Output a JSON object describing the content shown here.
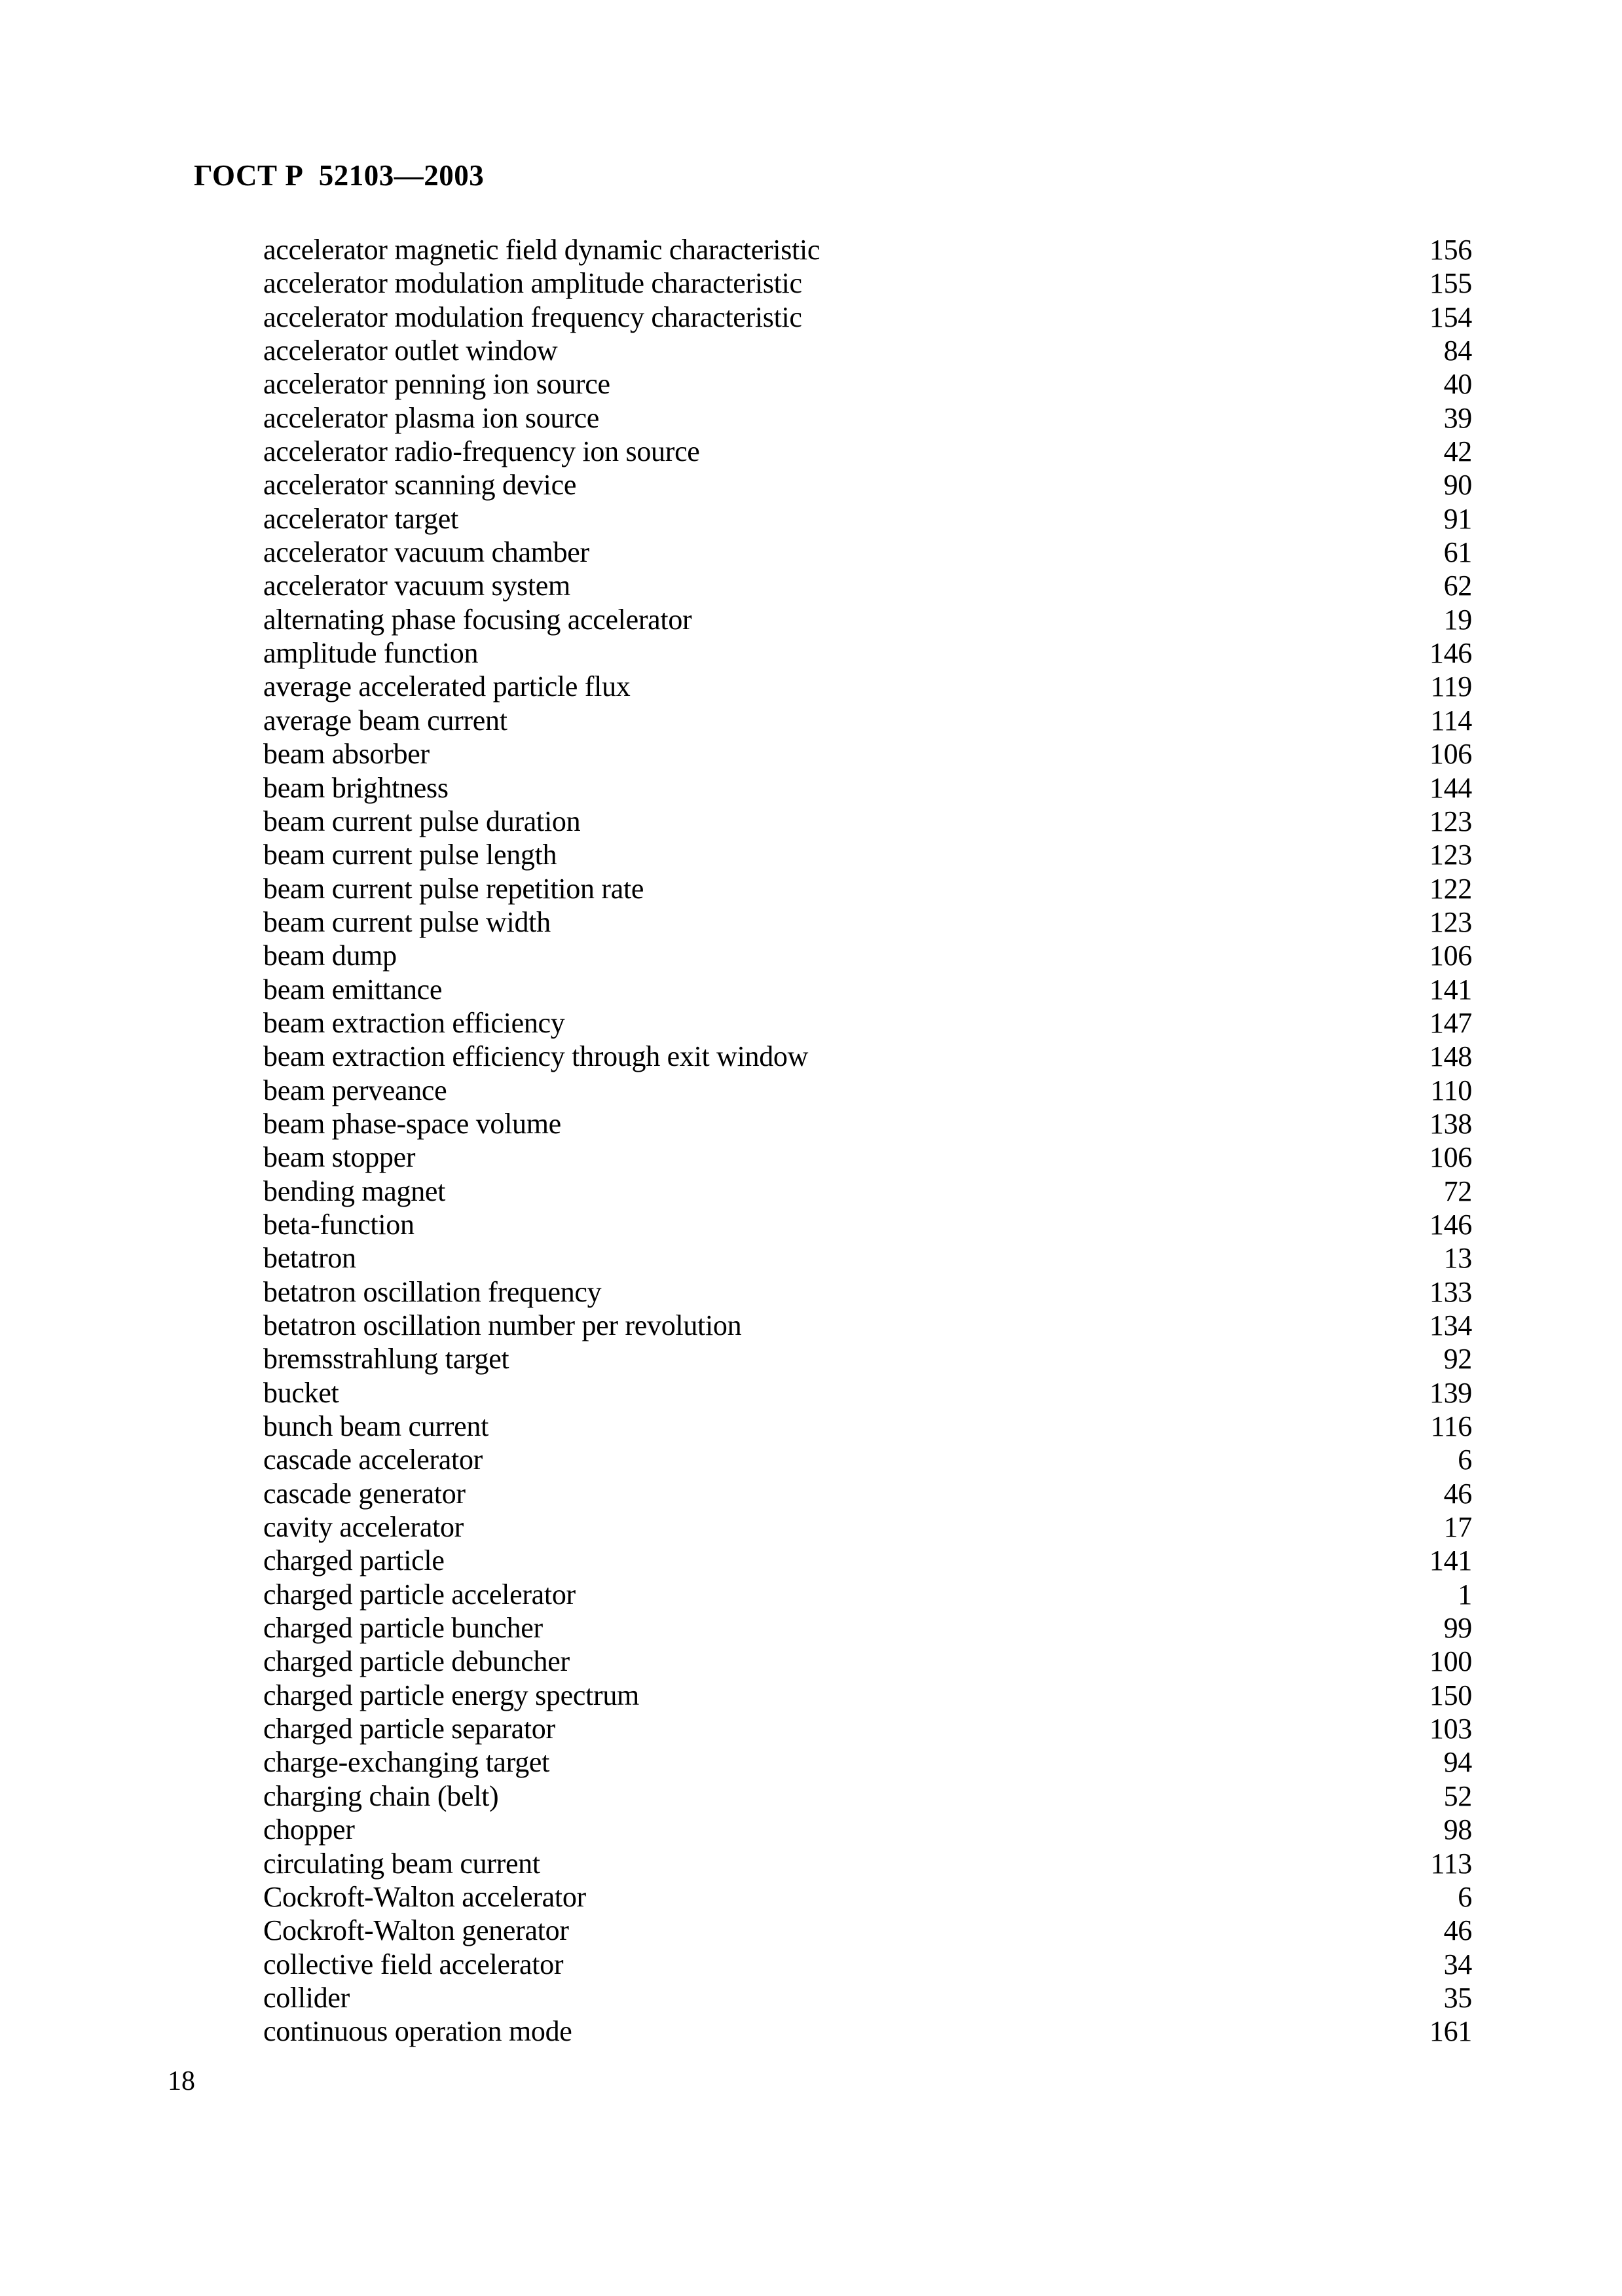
{
  "header": {
    "standard_code": "ГОСТ Р  52103—2003"
  },
  "footer": {
    "page_number": "18"
  },
  "index": {
    "entries": [
      {
        "term": "accelerator magnetic field dynamic characteristic",
        "page": "156"
      },
      {
        "term": "accelerator modulation amplitude characteristic",
        "page": "155"
      },
      {
        "term": "accelerator modulation frequency characteristic",
        "page": "154"
      },
      {
        "term": "accelerator outlet window",
        "page": "84"
      },
      {
        "term": "accelerator penning ion source",
        "page": "40"
      },
      {
        "term": "accelerator plasma ion source",
        "page": "39"
      },
      {
        "term": "accelerator radio-frequency ion source",
        "page": "42"
      },
      {
        "term": "accelerator scanning device",
        "page": "90"
      },
      {
        "term": "accelerator target",
        "page": "91"
      },
      {
        "term": "accelerator vacuum chamber",
        "page": "61"
      },
      {
        "term": "accelerator vacuum system",
        "page": "62"
      },
      {
        "term": "alternating phase focusing accelerator",
        "page": "19"
      },
      {
        "term": "amplitude function",
        "page": "146"
      },
      {
        "term": "average accelerated particle flux",
        "page": "119"
      },
      {
        "term": "average beam current",
        "page": "114"
      },
      {
        "term": "beam absorber",
        "page": "106"
      },
      {
        "term": "beam brightness",
        "page": "144"
      },
      {
        "term": "beam current pulse duration",
        "page": "123"
      },
      {
        "term": "beam current pulse length",
        "page": "123"
      },
      {
        "term": "beam current pulse repetition rate",
        "page": "122"
      },
      {
        "term": "beam current pulse width",
        "page": "123"
      },
      {
        "term": "beam dump",
        "page": "106"
      },
      {
        "term": "beam emittance",
        "page": "141"
      },
      {
        "term": "beam extraction efficiency",
        "page": "147"
      },
      {
        "term": "beam extraction efficiency through exit window",
        "page": "148"
      },
      {
        "term": "beam perveance",
        "page": "110"
      },
      {
        "term": "beam phase-space volume",
        "page": "138"
      },
      {
        "term": "beam stopper",
        "page": "106"
      },
      {
        "term": "bending magnet",
        "page": "72"
      },
      {
        "term": "beta-function",
        "page": "146"
      },
      {
        "term": "betatron",
        "page": "13"
      },
      {
        "term": "betatron oscillation frequency",
        "page": "133"
      },
      {
        "term": "betatron oscillation number per revolution",
        "page": "134"
      },
      {
        "term": "bremsstrahlung target",
        "page": "92"
      },
      {
        "term": "bucket",
        "page": "139"
      },
      {
        "term": "bunch beam current",
        "page": "116"
      },
      {
        "term": "cascade accelerator",
        "page": "6"
      },
      {
        "term": "cascade generator",
        "page": "46"
      },
      {
        "term": "cavity accelerator",
        "page": "17"
      },
      {
        "term": "charged particle",
        "page": "141"
      },
      {
        "term": "charged particle accelerator",
        "page": "1"
      },
      {
        "term": "charged particle buncher",
        "page": "99"
      },
      {
        "term": "charged particle debuncher",
        "page": "100"
      },
      {
        "term": "charged particle energy spectrum",
        "page": "150"
      },
      {
        "term": "charged particle separator",
        "page": "103"
      },
      {
        "term": "charge-exchanging target",
        "page": "94"
      },
      {
        "term": "charging chain (belt)",
        "page": "52"
      },
      {
        "term": "chopper",
        "page": "98"
      },
      {
        "term": "circulating beam current",
        "page": "113"
      },
      {
        "term": "Cockroft-Walton accelerator",
        "page": "6"
      },
      {
        "term": "Cockroft-Walton generator",
        "page": "46"
      },
      {
        "term": "collective field accelerator",
        "page": "34"
      },
      {
        "term": "collider",
        "page": "35"
      },
      {
        "term": "continuous operation mode",
        "page": "161"
      }
    ]
  }
}
